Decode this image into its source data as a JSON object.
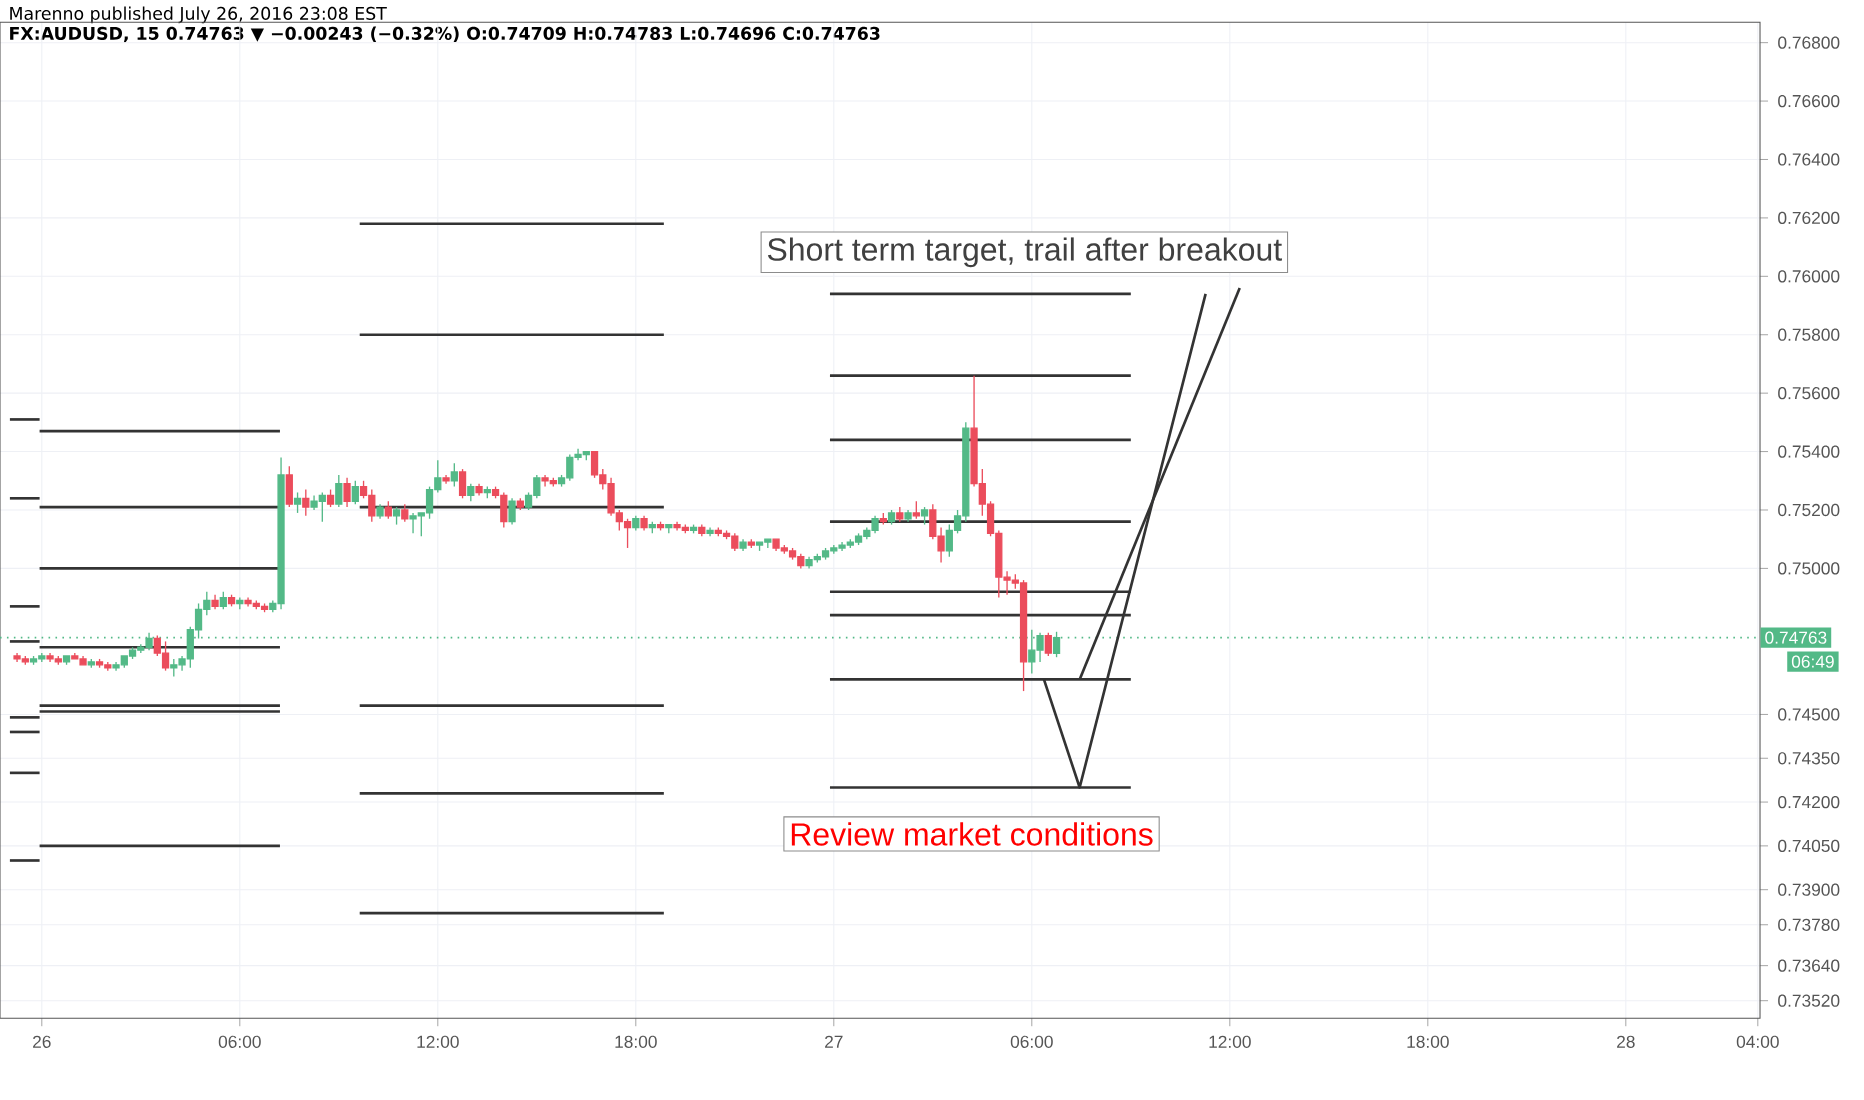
{
  "chart_data": {
    "type": "candlestick",
    "subtitle": "Marenno published July 26, 2016 23:08 EST",
    "title": "FX:AUDUSD, 15  0.74763 ▼ −0.00243 (−0.32%) O:0.74709 H:0.74783 L:0.74696 C:0.74763",
    "colors": [
      "#eb4d5c",
      "#eb4d5c",
      "#53b987",
      "#53b987",
      "#eb4d5c",
      "#eb4d5c",
      "#53b987",
      "#eb4d5c",
      "#eb4d5c",
      "#53b987",
      "#eb4d5c",
      "#eb4d5c",
      "#53b987",
      "#53b987",
      "#53b987",
      "#53b987",
      "#53b987",
      "#eb4d5c",
      "#eb4d5c",
      "#53b987",
      "#53b987",
      "#53b987",
      "#53b987",
      "#53b987",
      "#eb4d5c",
      "#53b987",
      "#eb4d5c",
      "#53b987",
      "#eb4d5c",
      "#eb4d5c",
      "#eb4d5c",
      "#53b987",
      "#53b987",
      "#eb4d5c",
      "#53b987",
      "#eb4d5c",
      "#53b987",
      "#53b987",
      "#eb4d5c",
      "#53b987",
      "#eb4d5c",
      "#53b987",
      "#eb4d5c",
      "#eb4d5c",
      "#53b987",
      "#eb4d5c",
      "#53b987",
      "#eb4d5c",
      "#53b987",
      "#53b987",
      "#53b987",
      "#53b987",
      "#eb4d5c",
      "#53b987",
      "#eb4d5c",
      "#53b987",
      "#eb4d5c",
      "#53b987",
      "#eb4d5c",
      "#eb4d5c",
      "#53b987",
      "#eb4d5c",
      "#53b987",
      "#53b987",
      "#eb4d5c",
      "#eb4d5c",
      "#53b987",
      "#53b987",
      "#53b987",
      "#53b987",
      "#eb4d5c",
      "#eb4d5c",
      "#eb4d5c",
      "#eb4d5c",
      "#eb4d5c",
      "#53b987",
      "#eb4d5c",
      "#53b987",
      "#eb4d5c",
      "#53b987",
      "#eb4d5c",
      "#eb4d5c",
      "#53b987",
      "#eb4d5c",
      "#53b987",
      "#eb4d5c",
      "#eb4d5c",
      "#eb4d5c",
      "#53b987",
      "#eb4d5c",
      "#53b987",
      "#53b987",
      "#eb4d5c",
      "#eb4d5c",
      "#eb4d5c",
      "#eb4d5c",
      "#53b987",
      "#53b987",
      "#53b987",
      "#53b987",
      "#53b987",
      "#53b987",
      "#53b987",
      "#53b987",
      "#53b987",
      "#eb4d5c",
      "#53b987",
      "#eb4d5c",
      "#53b987",
      "#eb4d5c",
      "#53b987",
      "#eb4d5c",
      "#eb4d5c",
      "#53b987",
      "#53b987",
      "#53b987",
      "#eb4d5c",
      "#eb4d5c",
      "#eb4d5c",
      "#eb4d5c",
      "#eb4d5c",
      "#eb4d5c",
      "#eb4d5c",
      "#53b987",
      "#53b987",
      "#eb4d5c",
      "#53b987"
    ],
    "x": [
      "2016-07-25T23:15",
      "2016-07-25T23:30",
      "2016-07-25T23:45",
      "2016-07-26T00:00",
      "2016-07-26T00:15",
      "2016-07-26T00:30",
      "2016-07-26T00:45",
      "2016-07-26T01:00",
      "2016-07-26T01:15",
      "2016-07-26T01:30",
      "2016-07-26T01:45",
      "2016-07-26T02:00",
      "2016-07-26T02:15",
      "2016-07-26T02:30",
      "2016-07-26T02:45",
      "2016-07-26T03:00",
      "2016-07-26T03:15",
      "2016-07-26T03:30",
      "2016-07-26T03:45",
      "2016-07-26T04:00",
      "2016-07-26T04:15",
      "2016-07-26T04:30",
      "2016-07-26T04:45",
      "2016-07-26T05:00",
      "2016-07-26T05:15",
      "2016-07-26T05:30",
      "2016-07-26T05:45",
      "2016-07-26T06:00",
      "2016-07-26T06:15",
      "2016-07-26T06:30",
      "2016-07-26T06:45",
      "2016-07-26T07:00",
      "2016-07-26T07:15",
      "2016-07-26T07:30",
      "2016-07-26T07:45",
      "2016-07-26T08:00",
      "2016-07-26T08:15",
      "2016-07-26T08:30",
      "2016-07-26T08:45",
      "2016-07-26T09:00",
      "2016-07-26T09:15",
      "2016-07-26T09:30",
      "2016-07-26T09:45",
      "2016-07-26T10:00",
      "2016-07-26T10:15",
      "2016-07-26T10:30",
      "2016-07-26T10:45",
      "2016-07-26T11:00",
      "2016-07-26T11:15",
      "2016-07-26T11:30",
      "2016-07-26T11:45",
      "2016-07-26T12:00",
      "2016-07-26T12:15",
      "2016-07-26T12:30",
      "2016-07-26T12:45",
      "2016-07-26T13:00",
      "2016-07-26T13:15",
      "2016-07-26T13:30",
      "2016-07-26T13:45",
      "2016-07-26T14:00",
      "2016-07-26T14:15",
      "2016-07-26T14:30",
      "2016-07-26T14:45",
      "2016-07-26T15:00",
      "2016-07-26T15:15",
      "2016-07-26T15:30",
      "2016-07-26T15:45",
      "2016-07-26T16:00",
      "2016-07-26T16:15",
      "2016-07-26T16:30",
      "2016-07-26T16:45",
      "2016-07-26T17:00",
      "2016-07-26T17:15",
      "2016-07-26T17:30",
      "2016-07-26T17:45",
      "2016-07-26T18:00",
      "2016-07-26T18:15",
      "2016-07-26T18:30",
      "2016-07-26T18:45",
      "2016-07-26T19:00",
      "2016-07-26T19:15",
      "2016-07-26T19:30",
      "2016-07-26T19:45",
      "2016-07-26T20:00",
      "2016-07-26T20:15",
      "2016-07-26T20:30",
      "2016-07-26T20:45",
      "2016-07-26T21:00",
      "2016-07-26T21:15",
      "2016-07-26T21:30",
      "2016-07-26T21:45",
      "2016-07-26T22:00",
      "2016-07-26T22:15",
      "2016-07-26T22:30",
      "2016-07-26T22:45",
      "2016-07-26T23:00",
      "2016-07-26T23:15",
      "2016-07-26T23:30",
      "2016-07-26T23:45",
      "2016-07-27T00:00",
      "2016-07-27T00:15",
      "2016-07-27T00:30",
      "2016-07-27T00:45",
      "2016-07-27T01:00",
      "2016-07-27T01:15",
      "2016-07-27T01:30",
      "2016-07-27T01:45",
      "2016-07-27T02:00",
      "2016-07-27T02:15",
      "2016-07-27T02:30",
      "2016-07-27T02:45",
      "2016-07-27T03:00",
      "2016-07-27T03:15",
      "2016-07-27T03:30",
      "2016-07-27T03:45",
      "2016-07-27T04:00",
      "2016-07-27T04:15",
      "2016-07-27T04:30",
      "2016-07-27T04:45",
      "2016-07-27T05:00",
      "2016-07-27T05:15",
      "2016-07-27T05:30",
      "2016-07-27T05:45",
      "2016-07-27T06:00",
      "2016-07-27T06:15",
      "2016-07-27T06:30",
      "2016-07-27T06:45"
    ],
    "ohlc": [
      [
        0.747,
        0.7471,
        0.7468,
        0.7469
      ],
      [
        0.7469,
        0.747,
        0.7467,
        0.7468
      ],
      [
        0.7468,
        0.747,
        0.7467,
        0.7469
      ],
      [
        0.7469,
        0.7471,
        0.7468,
        0.747
      ],
      [
        0.747,
        0.7471,
        0.7468,
        0.7469
      ],
      [
        0.7469,
        0.747,
        0.7467,
        0.7468
      ],
      [
        0.7468,
        0.747,
        0.7467,
        0.747
      ],
      [
        0.747,
        0.7471,
        0.7469,
        0.7469
      ],
      [
        0.7469,
        0.747,
        0.7467,
        0.7467
      ],
      [
        0.7467,
        0.7469,
        0.7466,
        0.7468
      ],
      [
        0.7468,
        0.7469,
        0.7466,
        0.7467
      ],
      [
        0.7467,
        0.7468,
        0.7465,
        0.7466
      ],
      [
        0.7466,
        0.7468,
        0.7465,
        0.7467
      ],
      [
        0.7467,
        0.747,
        0.7466,
        0.747
      ],
      [
        0.747,
        0.7473,
        0.7469,
        0.7472
      ],
      [
        0.7472,
        0.7474,
        0.7471,
        0.7473
      ],
      [
        0.7473,
        0.7478,
        0.7472,
        0.7476
      ],
      [
        0.7476,
        0.7477,
        0.747,
        0.7471
      ],
      [
        0.7471,
        0.7475,
        0.7465,
        0.7466
      ],
      [
        0.7466,
        0.7469,
        0.7463,
        0.7467
      ],
      [
        0.7467,
        0.747,
        0.7465,
        0.7469
      ],
      [
        0.7469,
        0.748,
        0.7466,
        0.7479
      ],
      [
        0.7479,
        0.7488,
        0.7476,
        0.7486
      ],
      [
        0.7486,
        0.7492,
        0.7484,
        0.7489
      ],
      [
        0.7489,
        0.7491,
        0.7486,
        0.7487
      ],
      [
        0.7487,
        0.7492,
        0.7486,
        0.749
      ],
      [
        0.749,
        0.7491,
        0.7487,
        0.7488
      ],
      [
        0.7488,
        0.749,
        0.7486,
        0.7489
      ],
      [
        0.7489,
        0.749,
        0.7487,
        0.7488
      ],
      [
        0.7488,
        0.7489,
        0.7486,
        0.7487
      ],
      [
        0.7487,
        0.7488,
        0.7485,
        0.7486
      ],
      [
        0.7486,
        0.7489,
        0.7485,
        0.7488
      ],
      [
        0.7488,
        0.7538,
        0.7486,
        0.7532
      ],
      [
        0.7532,
        0.7535,
        0.7521,
        0.7522
      ],
      [
        0.7522,
        0.7526,
        0.7519,
        0.7524
      ],
      [
        0.7524,
        0.7527,
        0.7518,
        0.7521
      ],
      [
        0.7521,
        0.7525,
        0.752,
        0.7523
      ],
      [
        0.7523,
        0.7526,
        0.7516,
        0.7525
      ],
      [
        0.7525,
        0.7527,
        0.7521,
        0.7522
      ],
      [
        0.7522,
        0.7532,
        0.7521,
        0.7529
      ],
      [
        0.7529,
        0.7531,
        0.7521,
        0.7523
      ],
      [
        0.7523,
        0.753,
        0.7522,
        0.7528
      ],
      [
        0.7528,
        0.753,
        0.7524,
        0.7525
      ],
      [
        0.7525,
        0.7527,
        0.7516,
        0.7518
      ],
      [
        0.7518,
        0.7522,
        0.7517,
        0.7521
      ],
      [
        0.7521,
        0.7523,
        0.7517,
        0.7518
      ],
      [
        0.7518,
        0.7521,
        0.7515,
        0.752
      ],
      [
        0.752,
        0.7522,
        0.7516,
        0.7517
      ],
      [
        0.7517,
        0.7519,
        0.7512,
        0.7518
      ],
      [
        0.7518,
        0.7519,
        0.7511,
        0.7519
      ],
      [
        0.7519,
        0.7528,
        0.7517,
        0.7527
      ],
      [
        0.7527,
        0.7537,
        0.7526,
        0.7531
      ],
      [
        0.7531,
        0.7532,
        0.7529,
        0.753
      ],
      [
        0.753,
        0.7536,
        0.7528,
        0.7533
      ],
      [
        0.7533,
        0.7534,
        0.7524,
        0.7525
      ],
      [
        0.7525,
        0.7529,
        0.7523,
        0.7528
      ],
      [
        0.7528,
        0.7529,
        0.7525,
        0.7526
      ],
      [
        0.7526,
        0.7528,
        0.7524,
        0.7527
      ],
      [
        0.7527,
        0.7528,
        0.7524,
        0.7525
      ],
      [
        0.7525,
        0.7526,
        0.7514,
        0.7516
      ],
      [
        0.7516,
        0.7524,
        0.7515,
        0.7523
      ],
      [
        0.7523,
        0.7524,
        0.752,
        0.7521
      ],
      [
        0.7521,
        0.7526,
        0.752,
        0.7525
      ],
      [
        0.7525,
        0.7532,
        0.7524,
        0.7531
      ],
      [
        0.7531,
        0.7532,
        0.7528,
        0.753
      ],
      [
        0.753,
        0.7531,
        0.7528,
        0.7529
      ],
      [
        0.7529,
        0.7532,
        0.7528,
        0.7531
      ],
      [
        0.7531,
        0.7539,
        0.753,
        0.7538
      ],
      [
        0.7538,
        0.7541,
        0.7537,
        0.7539
      ],
      [
        0.7539,
        0.754,
        0.7537,
        0.754
      ],
      [
        0.754,
        0.754,
        0.7531,
        0.7532
      ],
      [
        0.7532,
        0.7534,
        0.7527,
        0.7529
      ],
      [
        0.7529,
        0.7531,
        0.7518,
        0.7519
      ],
      [
        0.7519,
        0.752,
        0.7513,
        0.7516
      ],
      [
        0.7516,
        0.7517,
        0.7507,
        0.7514
      ],
      [
        0.7514,
        0.7518,
        0.7513,
        0.7517
      ],
      [
        0.7517,
        0.7518,
        0.7513,
        0.7514
      ],
      [
        0.7514,
        0.7516,
        0.7512,
        0.7515
      ],
      [
        0.7515,
        0.7516,
        0.7513,
        0.7514
      ],
      [
        0.7514,
        0.7515,
        0.7512,
        0.7515
      ],
      [
        0.7515,
        0.7516,
        0.7513,
        0.7514
      ],
      [
        0.7514,
        0.7515,
        0.7512,
        0.7513
      ],
      [
        0.7513,
        0.7515,
        0.7512,
        0.7514
      ],
      [
        0.7514,
        0.7515,
        0.7511,
        0.7512
      ],
      [
        0.7512,
        0.7514,
        0.7511,
        0.7513
      ],
      [
        0.7513,
        0.7514,
        0.7511,
        0.7512
      ],
      [
        0.7512,
        0.7513,
        0.751,
        0.7511
      ],
      [
        0.7511,
        0.7512,
        0.7506,
        0.7507
      ],
      [
        0.7507,
        0.751,
        0.7506,
        0.7509
      ],
      [
        0.7509,
        0.751,
        0.7507,
        0.7508
      ],
      [
        0.7508,
        0.7509,
        0.7506,
        0.7509
      ],
      [
        0.7509,
        0.751,
        0.7507,
        0.751
      ],
      [
        0.751,
        0.751,
        0.7506,
        0.7507
      ],
      [
        0.7507,
        0.7508,
        0.7505,
        0.7506
      ],
      [
        0.7506,
        0.7507,
        0.7503,
        0.7504
      ],
      [
        0.7504,
        0.7505,
        0.75,
        0.7501
      ],
      [
        0.7501,
        0.7504,
        0.75,
        0.7503
      ],
      [
        0.7503,
        0.7505,
        0.7502,
        0.7504
      ],
      [
        0.7504,
        0.7507,
        0.7503,
        0.7506
      ],
      [
        0.7506,
        0.7508,
        0.7505,
        0.7507
      ],
      [
        0.7507,
        0.7509,
        0.7506,
        0.7508
      ],
      [
        0.7508,
        0.751,
        0.7507,
        0.7509
      ],
      [
        0.7509,
        0.7512,
        0.7508,
        0.7511
      ],
      [
        0.7511,
        0.7514,
        0.751,
        0.7513
      ],
      [
        0.7513,
        0.7518,
        0.7512,
        0.7517
      ],
      [
        0.7517,
        0.7519,
        0.7515,
        0.7516
      ],
      [
        0.7516,
        0.752,
        0.7515,
        0.7519
      ],
      [
        0.7519,
        0.7521,
        0.7516,
        0.7517
      ],
      [
        0.7517,
        0.752,
        0.7516,
        0.7519
      ],
      [
        0.7519,
        0.7523,
        0.7517,
        0.7518
      ],
      [
        0.7518,
        0.7521,
        0.7515,
        0.752
      ],
      [
        0.752,
        0.7522,
        0.751,
        0.7511
      ],
      [
        0.7511,
        0.7514,
        0.7502,
        0.7506
      ],
      [
        0.7506,
        0.7515,
        0.7504,
        0.7513
      ],
      [
        0.7513,
        0.752,
        0.7512,
        0.7518
      ],
      [
        0.7518,
        0.755,
        0.7516,
        0.7548
      ],
      [
        0.7548,
        0.7566,
        0.7528,
        0.7529
      ],
      [
        0.7529,
        0.7534,
        0.7518,
        0.7522
      ],
      [
        0.7522,
        0.7523,
        0.7511,
        0.7512
      ],
      [
        0.7512,
        0.7513,
        0.749,
        0.7497
      ],
      [
        0.7497,
        0.7499,
        0.7491,
        0.7496
      ],
      [
        0.7496,
        0.7498,
        0.7493,
        0.7495
      ],
      [
        0.7495,
        0.7496,
        0.7458,
        0.7468
      ],
      [
        0.7468,
        0.7479,
        0.7464,
        0.7472
      ],
      [
        0.7472,
        0.7478,
        0.7468,
        0.7477
      ],
      [
        0.7477,
        0.7478,
        0.747,
        0.7471
      ],
      [
        0.74709,
        0.74783,
        0.74696,
        0.74763
      ]
    ],
    "series": [
      {
        "type": "line",
        "color": "#333333",
        "x": [
          "2016-07-25T23:02",
          "2016-07-25T23:56"
        ],
        "values": [
          0.7551,
          0.7551
        ]
      },
      {
        "type": "line",
        "color": "#333333",
        "x": [
          "2016-07-25T23:02",
          "2016-07-25T23:56"
        ],
        "values": [
          0.7524,
          0.7524
        ]
      },
      {
        "type": "line",
        "color": "#333333",
        "x": [
          "2016-07-25T23:02",
          "2016-07-25T23:56"
        ],
        "values": [
          0.7487,
          0.7487
        ]
      },
      {
        "type": "line",
        "color": "#333333",
        "x": [
          "2016-07-25T23:02",
          "2016-07-25T23:56"
        ],
        "values": [
          0.7475,
          0.7475
        ]
      },
      {
        "type": "line",
        "color": "#333333",
        "x": [
          "2016-07-25T23:02",
          "2016-07-25T23:56"
        ],
        "values": [
          0.7449,
          0.7449
        ]
      },
      {
        "type": "line",
        "color": "#333333",
        "x": [
          "2016-07-25T23:02",
          "2016-07-25T23:56"
        ],
        "values": [
          0.7444,
          0.7444
        ]
      },
      {
        "type": "line",
        "color": "#333333",
        "x": [
          "2016-07-25T23:02",
          "2016-07-25T23:56"
        ],
        "values": [
          0.743,
          0.743
        ]
      },
      {
        "type": "line",
        "color": "#333333",
        "x": [
          "2016-07-25T23:02",
          "2016-07-25T23:56"
        ],
        "values": [
          0.74,
          0.74
        ]
      },
      {
        "type": "line",
        "color": "#333333",
        "x": [
          "2016-07-25T23:56",
          "2016-07-26T07:13"
        ],
        "values": [
          0.7547,
          0.7547
        ]
      },
      {
        "type": "line",
        "color": "#333333",
        "x": [
          "2016-07-25T23:56",
          "2016-07-26T07:13"
        ],
        "values": [
          0.7521,
          0.7521
        ]
      },
      {
        "type": "line",
        "color": "#333333",
        "x": [
          "2016-07-25T23:56",
          "2016-07-26T07:13"
        ],
        "values": [
          0.75,
          0.75
        ]
      },
      {
        "type": "line",
        "color": "#333333",
        "x": [
          "2016-07-25T23:56",
          "2016-07-26T07:13"
        ],
        "values": [
          0.7473,
          0.7473
        ]
      },
      {
        "type": "line",
        "color": "#333333",
        "x": [
          "2016-07-25T23:56",
          "2016-07-26T07:13"
        ],
        "values": [
          0.7453,
          0.7453
        ]
      },
      {
        "type": "line",
        "color": "#333333",
        "x": [
          "2016-07-25T23:56",
          "2016-07-26T07:13"
        ],
        "values": [
          0.7451,
          0.7451
        ]
      },
      {
        "type": "line",
        "color": "#333333",
        "x": [
          "2016-07-25T23:56",
          "2016-07-26T07:13"
        ],
        "values": [
          0.7405,
          0.7405
        ]
      },
      {
        "type": "line",
        "color": "#333333",
        "x": [
          "2016-07-26T09:38",
          "2016-07-26T18:51"
        ],
        "values": [
          0.7618,
          0.7618
        ]
      },
      {
        "type": "line",
        "color": "#333333",
        "x": [
          "2016-07-26T09:38",
          "2016-07-26T18:51"
        ],
        "values": [
          0.758,
          0.758
        ]
      },
      {
        "type": "line",
        "color": "#333333",
        "x": [
          "2016-07-26T09:38",
          "2016-07-26T18:51"
        ],
        "values": [
          0.7521,
          0.7521
        ]
      },
      {
        "type": "line",
        "color": "#333333",
        "x": [
          "2016-07-26T09:38",
          "2016-07-26T18:51"
        ],
        "values": [
          0.7453,
          0.7453
        ]
      },
      {
        "type": "line",
        "color": "#333333",
        "x": [
          "2016-07-26T09:38",
          "2016-07-26T18:51"
        ],
        "values": [
          0.7423,
          0.7423
        ]
      },
      {
        "type": "line",
        "color": "#333333",
        "x": [
          "2016-07-26T09:38",
          "2016-07-26T18:51"
        ],
        "values": [
          0.7382,
          0.7382
        ]
      },
      {
        "type": "line",
        "color": "#333333",
        "x": [
          "2016-07-26T23:53",
          "2016-07-27T09:00"
        ],
        "values": [
          0.7594,
          0.7594
        ]
      },
      {
        "type": "line",
        "color": "#333333",
        "x": [
          "2016-07-26T23:53",
          "2016-07-27T09:00"
        ],
        "values": [
          0.7566,
          0.7566
        ]
      },
      {
        "type": "line",
        "color": "#333333",
        "x": [
          "2016-07-26T23:53",
          "2016-07-27T09:00"
        ],
        "values": [
          0.7544,
          0.7544
        ]
      },
      {
        "type": "line",
        "color": "#333333",
        "x": [
          "2016-07-26T23:53",
          "2016-07-27T09:00"
        ],
        "values": [
          0.7516,
          0.7516
        ]
      },
      {
        "type": "line",
        "color": "#333333",
        "x": [
          "2016-07-26T23:53",
          "2016-07-27T09:00"
        ],
        "values": [
          0.7492,
          0.7492
        ]
      },
      {
        "type": "line",
        "color": "#333333",
        "x": [
          "2016-07-26T23:53",
          "2016-07-27T09:00"
        ],
        "values": [
          0.7484,
          0.7484
        ]
      },
      {
        "type": "line",
        "color": "#333333",
        "x": [
          "2016-07-26T23:53",
          "2016-07-27T09:00"
        ],
        "values": [
          0.7462,
          0.7462
        ]
      },
      {
        "type": "line",
        "color": "#333333",
        "x": [
          "2016-07-26T23:53",
          "2016-07-27T09:00"
        ],
        "values": [
          0.7425,
          0.7425
        ]
      },
      {
        "type": "line",
        "color": "#333333",
        "x": [
          "2016-07-27T06:22",
          "2016-07-27T07:27",
          "2016-07-27T11:16"
        ],
        "values": [
          0.7462,
          0.7425,
          0.7594
        ]
      },
      {
        "type": "line",
        "color": "#333333",
        "x": [
          "2016-07-27T07:27",
          "2016-07-27T12:18"
        ],
        "values": [
          0.7462,
          0.7596
        ]
      }
    ],
    "annotations": [
      "Short term target, trail after breakout",
      "Review market conditions",
      "06:49"
    ],
    "ref_lines": [
      {
        "axis": "y",
        "value": 0.74763,
        "label": "0.74763",
        "color": "#53b987",
        "line_style": "dotted"
      }
    ],
    "xlim": [
      "2016-07-25T22:44",
      "2016-07-28T04:04"
    ],
    "xticks": [
      {
        "value": "2016-07-26",
        "label": "26"
      },
      {
        "value": "2016-07-26T06:00",
        "label": "06:00"
      },
      {
        "value": "2016-07-26T12:00",
        "label": "12:00"
      },
      {
        "value": "2016-07-26T18:00",
        "label": "18:00"
      },
      {
        "value": "2016-07-27",
        "label": "27"
      },
      {
        "value": "2016-07-27T06:00",
        "label": "06:00"
      },
      {
        "value": "2016-07-27T12:00",
        "label": "12:00"
      },
      {
        "value": "2016-07-27T18:00",
        "label": "18:00"
      },
      {
        "value": "2016-07-28",
        "label": "28"
      },
      {
        "value": "2016-07-28T04:00",
        "label": "04:00"
      }
    ],
    "ylim": [
      0.7346,
      0.7687
    ],
    "yticks": [
      {
        "value": 0.768,
        "label": "0.76800"
      },
      {
        "value": 0.766,
        "label": "0.76600"
      },
      {
        "value": 0.764,
        "label": "0.76400"
      },
      {
        "value": 0.762,
        "label": "0.76200"
      },
      {
        "value": 0.76,
        "label": "0.76000"
      },
      {
        "value": 0.758,
        "label": "0.75800"
      },
      {
        "value": 0.756,
        "label": "0.75600"
      },
      {
        "value": 0.754,
        "label": "0.75400"
      },
      {
        "value": 0.752,
        "label": "0.75200"
      },
      {
        "value": 0.75,
        "label": "0.75000"
      },
      {
        "value": 0.745,
        "label": "0.74500"
      },
      {
        "value": 0.7435,
        "label": "0.74350"
      },
      {
        "value": 0.742,
        "label": "0.74200"
      },
      {
        "value": 0.7405,
        "label": "0.74050"
      },
      {
        "value": 0.739,
        "label": "0.73900"
      },
      {
        "value": 0.7378,
        "label": "0.73780"
      },
      {
        "value": 0.7364,
        "label": "0.73640"
      },
      {
        "value": 0.7352,
        "label": "0.73520"
      }
    ],
    "grid": true,
    "marker": "none",
    "line_style": "solid"
  }
}
